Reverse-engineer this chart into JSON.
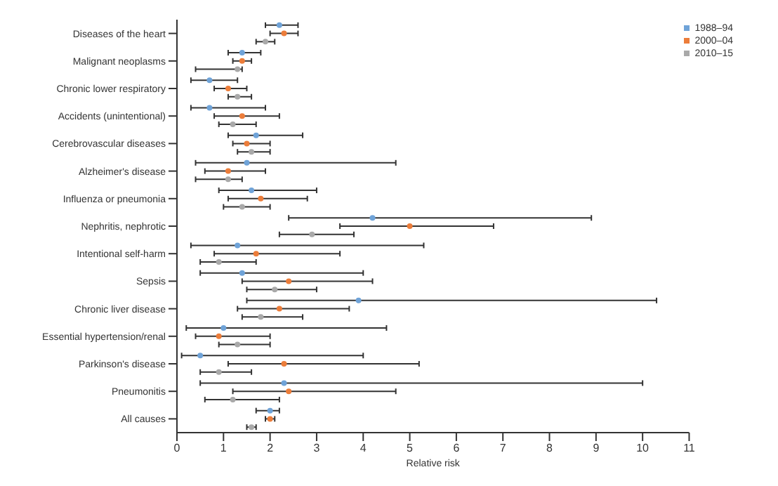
{
  "chart_data": {
    "type": "scatter",
    "orientation": "horizontal",
    "xlabel": "Relative risk",
    "categories": [
      "Diseases of the heart",
      "Malignant neoplasms",
      "Chronic lower respiratory",
      "Accidents (unintentional)",
      "Cerebrovascular diseases",
      "Alzheimer's disease",
      "Influenza or pneumonia",
      "Nephritis, nephrotic",
      "Intentional self-harm",
      "Sepsis",
      "Chronic liver disease",
      "Essential hypertension/renal",
      "Parkinson's disease",
      "Pneumonitis",
      "All causes"
    ],
    "series": [
      {
        "name": "1988–94",
        "color": "#6fa3d8",
        "values": [
          2.2,
          1.4,
          0.7,
          0.7,
          1.7,
          1.5,
          1.6,
          4.2,
          1.3,
          1.4,
          3.9,
          1.0,
          0.5,
          2.3,
          2.0
        ],
        "errors": [
          [
            1.9,
            2.6
          ],
          [
            1.1,
            1.8
          ],
          [
            0.3,
            1.3
          ],
          [
            0.3,
            1.9
          ],
          [
            1.1,
            2.7
          ],
          [
            0.4,
            4.7
          ],
          [
            0.9,
            3.0
          ],
          [
            2.4,
            8.9
          ],
          [
            0.3,
            5.3
          ],
          [
            0.5,
            4.0
          ],
          [
            1.5,
            10.3
          ],
          [
            0.2,
            4.5
          ],
          [
            0.1,
            4.0
          ],
          [
            0.5,
            10.0
          ],
          [
            1.7,
            2.2
          ]
        ]
      },
      {
        "name": "2000–04",
        "color": "#ec7d3a",
        "values": [
          2.3,
          1.4,
          1.1,
          1.4,
          1.5,
          1.1,
          1.8,
          5.0,
          1.7,
          2.4,
          2.2,
          0.9,
          2.3,
          2.4,
          2.0
        ],
        "errors": [
          [
            2.0,
            2.6
          ],
          [
            1.2,
            1.6
          ],
          [
            0.8,
            1.5
          ],
          [
            0.8,
            2.2
          ],
          [
            1.2,
            2.0
          ],
          [
            0.6,
            1.9
          ],
          [
            1.1,
            2.8
          ],
          [
            3.5,
            6.8
          ],
          [
            0.8,
            3.5
          ],
          [
            1.4,
            4.2
          ],
          [
            1.3,
            3.7
          ],
          [
            0.4,
            2.0
          ],
          [
            1.1,
            5.2
          ],
          [
            1.2,
            4.7
          ],
          [
            1.9,
            2.1
          ]
        ]
      },
      {
        "name": "2010–15",
        "color": "#a9a9a9",
        "values": [
          1.9,
          1.3,
          1.3,
          1.2,
          1.6,
          1.1,
          1.4,
          2.9,
          0.9,
          2.1,
          1.8,
          1.3,
          0.9,
          1.2,
          1.6
        ],
        "errors": [
          [
            1.7,
            2.1
          ],
          [
            0.4,
            1.4
          ],
          [
            1.1,
            1.6
          ],
          [
            0.9,
            1.7
          ],
          [
            1.3,
            2.0
          ],
          [
            0.4,
            1.4
          ],
          [
            1.0,
            2.0
          ],
          [
            2.2,
            3.8
          ],
          [
            0.5,
            1.7
          ],
          [
            1.5,
            3.0
          ],
          [
            1.4,
            2.7
          ],
          [
            0.9,
            2.0
          ],
          [
            0.5,
            1.6
          ],
          [
            0.6,
            2.2
          ],
          [
            1.5,
            1.7
          ]
        ]
      }
    ],
    "xlim": [
      0,
      11
    ],
    "xticks": [
      0,
      1,
      2,
      3,
      4,
      5,
      6,
      7,
      8,
      9,
      10,
      11
    ],
    "grid": false,
    "legend": "top right",
    "marker": "circle"
  }
}
